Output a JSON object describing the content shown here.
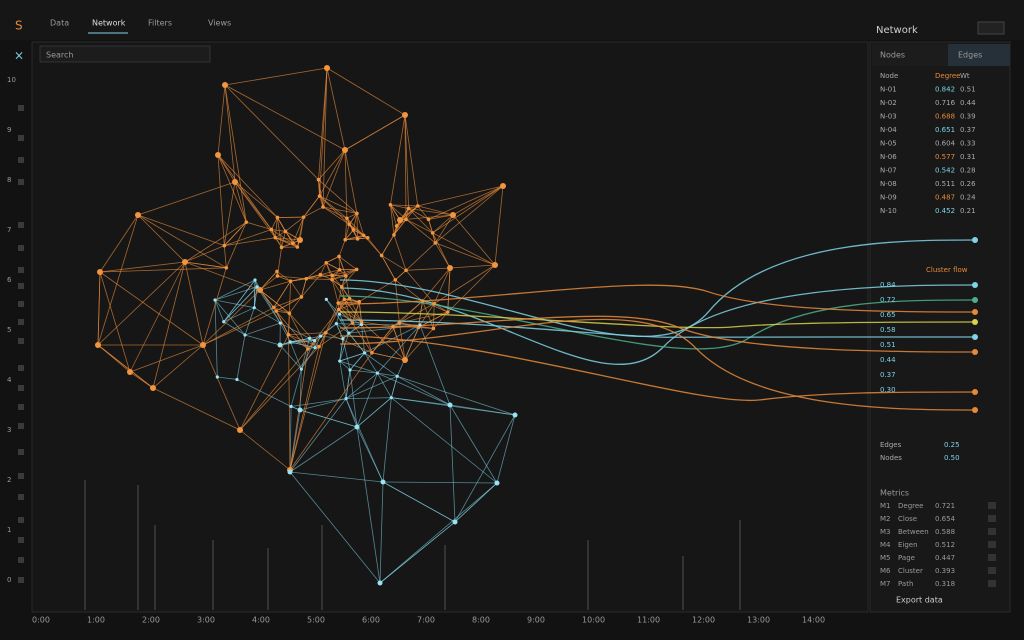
{
  "app": {
    "logo": "S",
    "tabs": [
      "Data",
      "Network",
      "Filters",
      "Views"
    ],
    "workspace": "Network",
    "search": "Search"
  },
  "axis": {
    "x_labels": [
      "0:00",
      "1:00",
      "2:00",
      "3:00",
      "4:00",
      "5:00",
      "6:00",
      "7:00",
      "8:00",
      "9:00",
      "10:00",
      "11:00",
      "12:00",
      "13:00",
      "14:00"
    ],
    "y_labels": [
      "10",
      "9",
      "8",
      "7",
      "6",
      "5",
      "4",
      "3",
      "2",
      "1",
      "0"
    ]
  },
  "panel": {
    "tabs": [
      "Nodes",
      "Edges"
    ],
    "rows": [
      [
        "Node",
        "Degree",
        "Wt"
      ],
      [
        "N-01",
        "0.842",
        "0.51"
      ],
      [
        "N-02",
        "0.716",
        "0.44"
      ],
      [
        "N-03",
        "0.688",
        "0.39"
      ],
      [
        "N-04",
        "0.651",
        "0.37"
      ],
      [
        "N-05",
        "0.604",
        "0.33"
      ],
      [
        "N-06",
        "0.577",
        "0.31"
      ],
      [
        "N-07",
        "0.542",
        "0.28"
      ],
      [
        "N-08",
        "0.511",
        "0.26"
      ],
      [
        "N-09",
        "0.487",
        "0.24"
      ],
      [
        "N-10",
        "0.452",
        "0.21"
      ]
    ],
    "legend": [
      "Cluster flow",
      "0.84",
      "0.72",
      "0.65",
      "0.58",
      "0.51",
      "0.44",
      "0.37",
      "0.30"
    ],
    "filters": [
      [
        "Edges",
        "0.25"
      ],
      [
        "Nodes",
        "0.50"
      ]
    ],
    "metrics_title": "Metrics",
    "metrics": [
      [
        "M1",
        "Degree",
        "0.721"
      ],
      [
        "M2",
        "Close",
        "0.654"
      ],
      [
        "M3",
        "Between",
        "0.588"
      ],
      [
        "M4",
        "Eigen",
        "0.512"
      ],
      [
        "M5",
        "Page",
        "0.447"
      ],
      [
        "M6",
        "Cluster",
        "0.393"
      ],
      [
        "M7",
        "Path",
        "0.318"
      ]
    ],
    "footer": "Export data"
  }
}
